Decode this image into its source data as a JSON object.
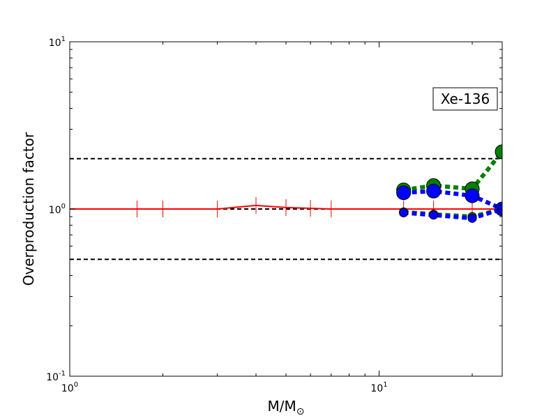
{
  "chart_data": {
    "type": "scatter",
    "title": "",
    "xlabel": "M/M",
    "xlabel_subscript": "⊙",
    "ylabel": "Overproduction factor",
    "xscale": "log",
    "yscale": "log",
    "xlim": [
      1,
      25
    ],
    "ylim": [
      0.1,
      10
    ],
    "x_ticks": [
      {
        "value": 1,
        "base": "10",
        "exp": "0"
      },
      {
        "value": 10,
        "base": "10",
        "exp": "1"
      }
    ],
    "y_ticks": [
      {
        "value": 0.1,
        "base": "10",
        "exp": "-1"
      },
      {
        "value": 1,
        "base": "10",
        "exp": "0"
      },
      {
        "value": 10,
        "base": "10",
        "exp": "1"
      }
    ],
    "grid": false,
    "annotation": "Xe-136",
    "reference_lines": [
      {
        "y": 2.0,
        "style": "dashed",
        "color": "#000000"
      },
      {
        "y": 1.0,
        "style": "dashed",
        "color": "#000000"
      },
      {
        "y": 0.5,
        "style": "dashed",
        "color": "#000000"
      }
    ],
    "series": [
      {
        "style": "line-with-vertical-markers",
        "color": "#ff0000",
        "x": [
          1.0,
          1.65,
          2.0,
          3.0,
          4.0,
          5.0,
          6.0,
          7.0,
          12.0,
          15.0,
          20.0,
          25.0
        ],
        "y": [
          1.0,
          1.0,
          1.0,
          1.0,
          1.05,
          1.02,
          1.01,
          1.0,
          1.0,
          1.0,
          1.0,
          1.0
        ]
      },
      {
        "style": "dotted-large-markers",
        "color": "#008000",
        "x": [
          12,
          15,
          20,
          25
        ],
        "y": [
          1.3,
          1.38,
          1.32,
          2.2
        ]
      },
      {
        "style": "dotted-large-markers",
        "color": "#0000ff",
        "x": [
          12,
          15,
          20,
          25
        ],
        "y": [
          1.25,
          1.28,
          1.2,
          1.0
        ]
      },
      {
        "style": "dotted-small-markers",
        "color": "#008000",
        "x": [
          12,
          15,
          20,
          25
        ],
        "y": [
          0.96,
          0.93,
          0.9,
          1.0
        ]
      },
      {
        "style": "dotted-small-markers",
        "color": "#0000ff",
        "x": [
          12,
          15,
          20,
          25
        ],
        "y": [
          0.95,
          0.92,
          0.88,
          1.0
        ]
      }
    ]
  }
}
